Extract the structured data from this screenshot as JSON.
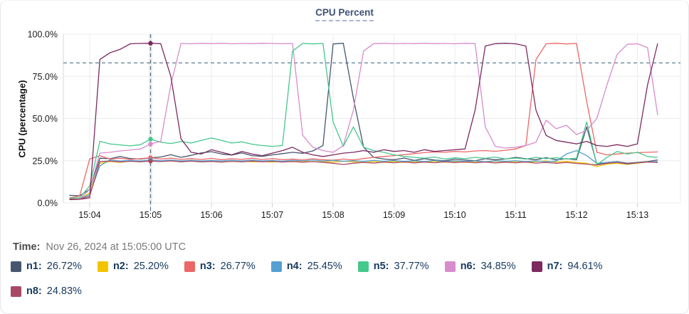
{
  "card": {
    "title": "CPU Percent"
  },
  "time_row": {
    "label": "Time:",
    "value": "Nov 26, 2024 at 15:05:00 UTC"
  },
  "chart_data": {
    "type": "line",
    "title": "CPU Percent",
    "xlabel": "",
    "ylabel": "CPU (percentage)",
    "ylim": [
      0,
      100
    ],
    "y_ticks": [
      "0.0%",
      "25.0%",
      "50.0%",
      "75.0%",
      "100.0%"
    ],
    "x_ticks": [
      "15:04",
      "15:05",
      "15:06",
      "15:07",
      "15:08",
      "15:09",
      "15:10",
      "15:11",
      "15:12",
      "15:13"
    ],
    "start_time": "15:03:40",
    "sample_interval_sec": 10,
    "threshold_pct": 83,
    "crosshair_time": "15:05:00",
    "cursor_index": 8,
    "legend_position": "bottom",
    "grid": true,
    "series": [
      {
        "name": "n1",
        "legend_label": "n1:",
        "legend_value": "26.72%",
        "color": "#47566e",
        "values": [
          4.5,
          4.2,
          8,
          26.5,
          26.2,
          27.5,
          26.3,
          26,
          26.7,
          27.2,
          28.6,
          27,
          28.2,
          29.6,
          30.4,
          29,
          28.4,
          29.6,
          28,
          27.6,
          28.5,
          29.2,
          30,
          29.4,
          30.8,
          34,
          94.2,
          94.6,
          62,
          33,
          27,
          26,
          25.6,
          26.6,
          25.2,
          26.2,
          25.4,
          25,
          26,
          25.4,
          25,
          26.2,
          25.6,
          26,
          27,
          26.2,
          25.6,
          26.8,
          25.6,
          26.2,
          25.6,
          45,
          23,
          24,
          24.5,
          23.5,
          24,
          24.5,
          25.5
        ]
      },
      {
        "name": "n2",
        "legend_label": "n2:",
        "legend_value": "25.20%",
        "color": "#f4c400",
        "values": [
          2.5,
          2.3,
          6,
          23.5,
          24.5,
          24,
          24.8,
          24.3,
          25.2,
          24.6,
          24.9,
          24.4,
          24.8,
          24.3,
          24.7,
          24.2,
          24.6,
          24.9,
          24.3,
          24.6,
          24.2,
          24.7,
          24.4,
          24.8,
          24.3,
          24.6,
          24.2,
          24.7,
          24.4,
          23.9,
          24.5,
          24.1,
          24.6,
          24,
          24.5,
          24.2,
          24.7,
          24.1,
          24.5,
          24,
          24.6,
          24.2,
          24.7,
          24.3,
          24.6,
          24.1,
          24.5,
          24.9,
          24.2,
          24.6,
          24,
          23.5,
          21.5,
          23,
          23.5,
          22.8,
          23.5,
          24.3,
          24
        ]
      },
      {
        "name": "n3",
        "legend_label": "n3:",
        "legend_value": "26.77%",
        "color": "#ec6767",
        "values": [
          3,
          4,
          26,
          28,
          26,
          26.5,
          25.8,
          26.2,
          26.8,
          26,
          26.5,
          25.8,
          26.3,
          25.7,
          26.4,
          25.6,
          26.2,
          25.8,
          26.5,
          25.7,
          26.3,
          25.6,
          26,
          25.5,
          26.2,
          25.6,
          25.3,
          26,
          25.5,
          26.3,
          27,
          27.5,
          28,
          28.6,
          29.2,
          29.8,
          30.2,
          30,
          30.5,
          30.2,
          30.8,
          31,
          30.6,
          31.2,
          32,
          34,
          85,
          94.3,
          94.6,
          94.2,
          94.5,
          60,
          30,
          28.5,
          29,
          29.5,
          29.8,
          30,
          30.2
        ]
      },
      {
        "name": "n4",
        "legend_label": "n4:",
        "legend_value": "25.45%",
        "color": "#55a0d2",
        "values": [
          2.2,
          2.4,
          5,
          22,
          25.5,
          24.8,
          25.2,
          24.9,
          25.5,
          25,
          25.4,
          24.9,
          25.3,
          24.8,
          25.2,
          24.8,
          25.3,
          24.9,
          25.4,
          24.8,
          25.2,
          24.7,
          25.3,
          24.9,
          25.5,
          24.8,
          25.2,
          24.7,
          25,
          24.6,
          25.2,
          24.7,
          25.1,
          24.6,
          25,
          24.5,
          25.1,
          24.6,
          25,
          24.5,
          24.9,
          24.4,
          25,
          24.6,
          25,
          24.5,
          24.9,
          24.4,
          24.8,
          29,
          31,
          28,
          23.5,
          24,
          24.5,
          23,
          23.8,
          24.2,
          24.5
        ]
      },
      {
        "name": "n5",
        "legend_label": "n5:",
        "legend_value": "37.77%",
        "color": "#45c88c",
        "values": [
          2.8,
          3,
          10,
          36.5,
          35,
          34.4,
          33.8,
          34.5,
          37.8,
          36,
          35.2,
          36.4,
          35.5,
          37,
          38.5,
          37,
          35.5,
          36.2,
          34.8,
          34,
          33.5,
          34,
          90,
          94.5,
          94.2,
          94.5,
          48,
          33.5,
          45,
          33,
          31,
          30,
          28.5,
          27.5,
          27,
          26.5,
          27.2,
          26,
          26.8,
          26.2,
          27,
          26.4,
          27.2,
          26,
          26.6,
          26,
          27,
          26.2,
          26.8,
          26,
          26.5,
          48,
          22.5,
          27,
          30.5,
          29,
          30,
          27.5,
          27
        ]
      },
      {
        "name": "n6",
        "legend_label": "n6:",
        "legend_value": "34.85%",
        "color": "#d78ccd",
        "values": [
          2,
          2.2,
          8,
          29.5,
          30,
          30.8,
          31.4,
          32,
          34.9,
          36.5,
          70,
          94.5,
          94.3,
          94.6,
          94.4,
          94.6,
          94.3,
          94.5,
          94.4,
          94.6,
          94.5,
          94.3,
          94.5,
          40,
          33,
          31,
          30,
          34,
          55,
          90,
          94.4,
          94.6,
          94.3,
          94.5,
          94.4,
          94.6,
          94.4,
          94.5,
          94.3,
          94.6,
          94.4,
          45,
          33.5,
          32.5,
          33,
          34,
          36,
          49,
          44,
          46,
          40.5,
          43,
          50,
          70,
          88,
          94,
          94.3,
          92,
          52
        ]
      },
      {
        "name": "n7",
        "legend_label": "n7:",
        "legend_value": "94.61%",
        "color": "#7c2a60",
        "values": [
          2,
          2.1,
          3,
          85,
          89,
          91,
          94.3,
          94.5,
          94.6,
          94.4,
          75,
          38,
          30,
          29,
          31.5,
          30,
          28.5,
          30.5,
          29,
          28,
          29.5,
          31,
          33,
          30,
          28.5,
          27.5,
          28.5,
          29.5,
          30,
          31,
          30,
          31.5,
          30.5,
          31,
          30,
          31.5,
          30.5,
          31,
          31.5,
          32,
          55,
          93,
          94.4,
          94.6,
          94.3,
          93,
          55,
          40,
          37,
          36,
          35,
          36.5,
          34,
          33.5,
          34.5,
          33.5,
          35,
          70,
          94.5
        ]
      },
      {
        "name": "n8",
        "legend_label": "n8:",
        "legend_value": "24.83%",
        "color": "#a84a67",
        "values": [
          2.3,
          2.2,
          4,
          24.5,
          24.8,
          24.3,
          24.7,
          24.4,
          24.8,
          24.5,
          24.9,
          24.4,
          24.8,
          24.3,
          24.6,
          24.2,
          24.7,
          24.3,
          24.8,
          24.4,
          24.7,
          24.2,
          24.6,
          24.1,
          24.5,
          24,
          23.5,
          22.8,
          23.5,
          24,
          23.6,
          24.2,
          23.8,
          24.3,
          23.7,
          24.2,
          23.8,
          24.4,
          23.9,
          24.3,
          23.8,
          24.2,
          23.7,
          24.1,
          23.8,
          24.2,
          23.6,
          24,
          23.5,
          24,
          23.4,
          23,
          22.5,
          23.5,
          24,
          23.2,
          23.8,
          24.2,
          24
        ]
      }
    ],
    "colors": {
      "threshold_line": "#4c7086",
      "crosshair_line": "#4c7086",
      "grid": "#ececec",
      "title": "#3e5277",
      "legend_text": "#16395f"
    }
  }
}
